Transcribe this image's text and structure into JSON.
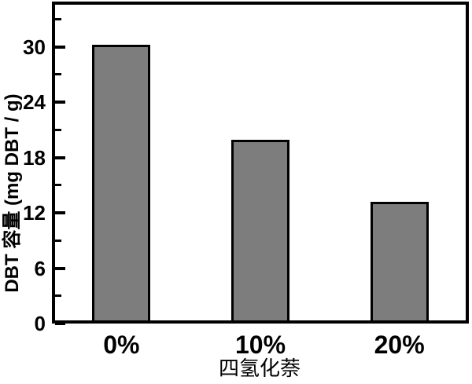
{
  "chart_data": {
    "type": "bar",
    "title": "",
    "categories": [
      "0%",
      "10%",
      "20%"
    ],
    "values": [
      30.2,
      19.9,
      13.2
    ],
    "xlabel": "四氢化萘",
    "ylabel": "DBT 容量 (mg DBT / g)",
    "ylim": [
      0,
      34.9
    ],
    "yticks_major": [
      0,
      6,
      12,
      18,
      24,
      30
    ],
    "yticks_minor": [
      3,
      9,
      15,
      21,
      27,
      33
    ],
    "grid": false,
    "legend": "none",
    "bar_fill": "#7d7d7d",
    "bar_stroke": "#000000",
    "axis_color": "#000000",
    "text_color": "#000000"
  }
}
